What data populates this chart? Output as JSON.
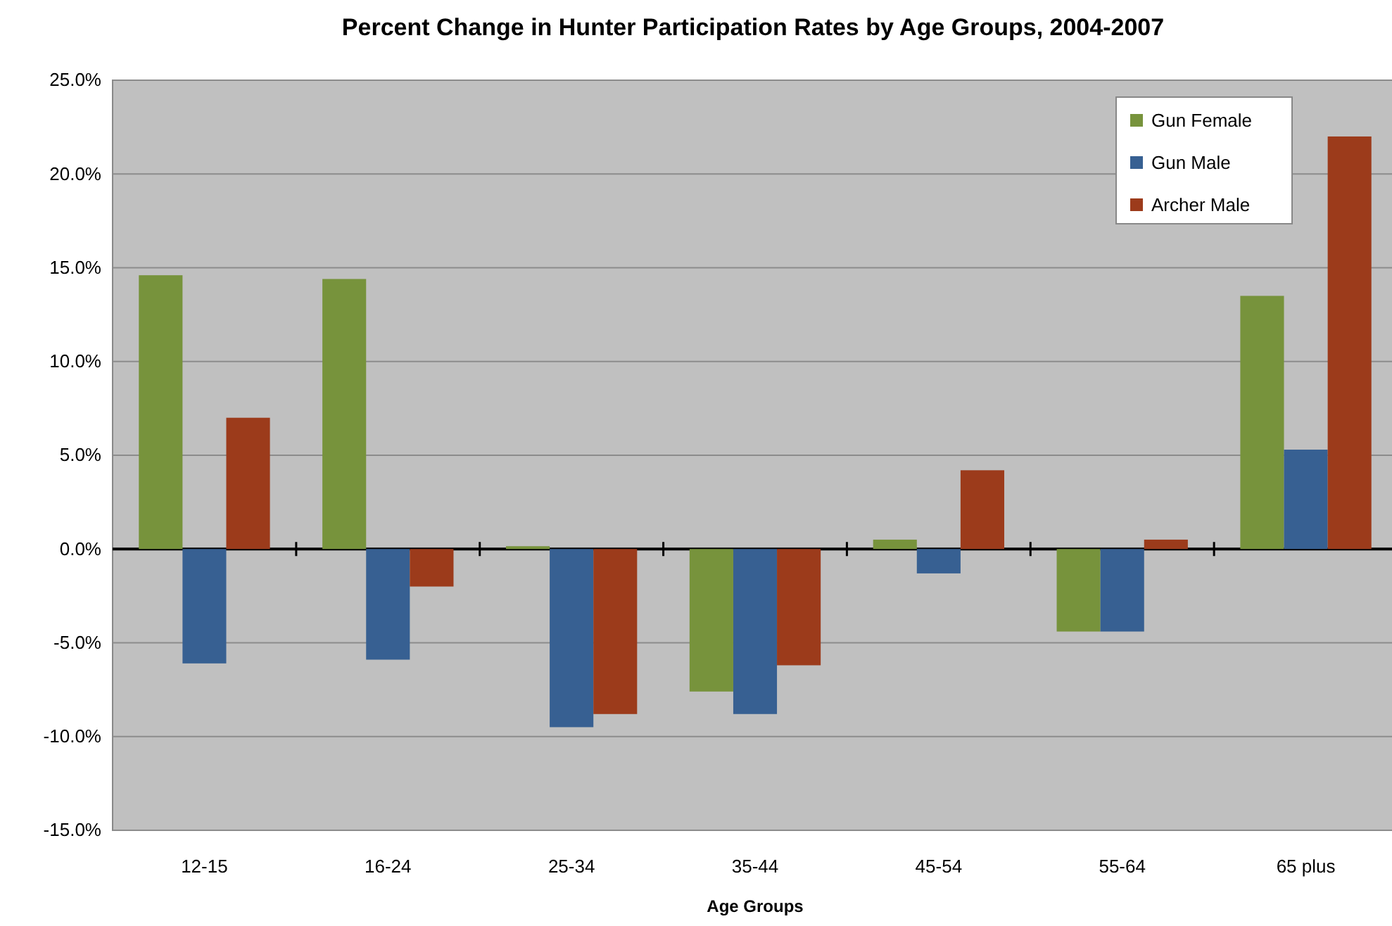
{
  "chart_data": {
    "type": "bar",
    "title": "Percent Change in Hunter Participation Rates by Age Groups, 2004-2007",
    "xlabel": "Age Groups",
    "categories": [
      "12-15",
      "16-24",
      "25-34",
      "35-44",
      "45-54",
      "55-64",
      "65 plus"
    ],
    "series": [
      {
        "name": "Gun Female",
        "color": "#77933c",
        "values": [
          14.6,
          14.4,
          0.15,
          -7.6,
          0.5,
          -4.4,
          13.5
        ]
      },
      {
        "name": "Gun Male",
        "color": "#376092",
        "values": [
          -6.1,
          -5.9,
          -9.5,
          -8.8,
          -1.3,
          -4.4,
          5.3
        ]
      },
      {
        "name": "Archer Male",
        "color": "#9c3b1b",
        "values": [
          7.0,
          -2.0,
          -8.8,
          -6.2,
          4.2,
          0.5,
          22.0
        ]
      }
    ],
    "ylim": [
      -15,
      25
    ],
    "yticks": [
      {
        "value": -15,
        "label": "-15.0%"
      },
      {
        "value": -10,
        "label": "-10.0%"
      },
      {
        "value": -5,
        "label": "-5.0%"
      },
      {
        "value": 0,
        "label": "0.0%"
      },
      {
        "value": 5,
        "label": "5.0%"
      },
      {
        "value": 10,
        "label": "10.0%"
      },
      {
        "value": 15,
        "label": "15.0%"
      },
      {
        "value": 20,
        "label": "20.0%"
      },
      {
        "value": 25,
        "label": "25.0%"
      }
    ],
    "grid": "y",
    "legend": "top right"
  }
}
